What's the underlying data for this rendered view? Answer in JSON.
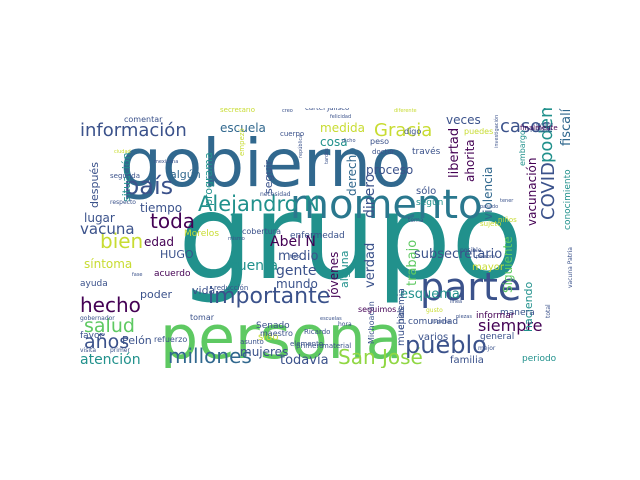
{
  "palette": {
    "purple": "#440154",
    "indigo": "#3b528b",
    "blue": "#31688e",
    "teal": "#21918c",
    "green": "#35b779",
    "lime": "#90d743",
    "yellow": "#c8dc32"
  },
  "words": [
    {
      "text": "grupo",
      "color": "#21918c"
    },
    {
      "text": "gobierno",
      "color": "#31688e"
    },
    {
      "text": "persona",
      "color": "#5ec962"
    },
    {
      "text": "momento",
      "color": "#2a788e"
    },
    {
      "text": "parte",
      "color": "#3b528b"
    },
    {
      "text": "Alejandro N",
      "color": "#21918c"
    },
    {
      "text": "Gracia",
      "color": "#c8dc32"
    },
    {
      "text": "San José",
      "color": "#90d743"
    },
    {
      "text": "información",
      "color": "#3b528b"
    },
    {
      "text": "país",
      "color": "#3b528b"
    },
    {
      "text": "importante",
      "color": "#3b528b"
    },
    {
      "text": "pueblo",
      "color": "#3b528b"
    },
    {
      "text": "salud",
      "color": "#5ec962"
    },
    {
      "text": "millones",
      "color": "#31688e"
    },
    {
      "text": "años",
      "color": "#3b528b"
    },
    {
      "text": "hecho",
      "color": "#440154"
    },
    {
      "text": "bien",
      "color": "#c8dc32"
    },
    {
      "text": "toda",
      "color": "#440154"
    },
    {
      "text": "casos",
      "color": "#3b528b"
    },
    {
      "text": "podemos",
      "color": "#21918c"
    },
    {
      "text": "COVID",
      "color": "#3b528b"
    },
    {
      "text": "siempre",
      "color": "#440154"
    },
    {
      "text": "vacuna",
      "color": "#3b528b"
    },
    {
      "text": "escuela",
      "color": "#31688e"
    },
    {
      "text": "medida",
      "color": "#c8dc32"
    },
    {
      "text": "fiscalía",
      "color": "#31688e"
    },
    {
      "text": "Abel N",
      "color": "#440154"
    },
    {
      "text": "atención",
      "color": "#21918c"
    },
    {
      "text": "todavía",
      "color": "#3b528b"
    },
    {
      "text": "mujeres",
      "color": "#3b528b"
    },
    {
      "text": "cuenta",
      "color": "#21918c"
    },
    {
      "text": "medio",
      "color": "#3b528b"
    },
    {
      "text": "gente",
      "color": "#3b528b"
    },
    {
      "text": "mundo",
      "color": "#3b528b"
    },
    {
      "text": "dinero",
      "color": "#3b528b"
    },
    {
      "text": "jóvenes",
      "color": "#440154"
    },
    {
      "text": "verdad",
      "color": "#3b528b"
    },
    {
      "text": "trabajo",
      "color": "#5ec962"
    },
    {
      "text": "esquema",
      "color": "#21918c"
    },
    {
      "text": "subsecretario",
      "color": "#3b528b"
    },
    {
      "text": "vacunación",
      "color": "#440154"
    },
    {
      "text": "violencia",
      "color": "#31688e"
    },
    {
      "text": "libertad",
      "color": "#440154"
    },
    {
      "text": "ahorita",
      "color": "#440154"
    },
    {
      "text": "proceso",
      "color": "#3b528b"
    },
    {
      "text": "derecho",
      "color": "#31688e"
    },
    {
      "text": "veces",
      "color": "#3b528b"
    },
    {
      "text": "cosa",
      "color": "#21918c"
    },
    {
      "text": "tiempo",
      "color": "#3b528b"
    },
    {
      "text": "lugar",
      "color": "#3b528b"
    },
    {
      "text": "edad",
      "color": "#440154"
    },
    {
      "text": "síntoma",
      "color": "#c8dc32"
    },
    {
      "text": "HUGO",
      "color": "#3b528b"
    },
    {
      "text": "poder",
      "color": "#3b528b"
    },
    {
      "text": "vida",
      "color": "#3b528b"
    },
    {
      "text": "después",
      "color": "#3b528b"
    },
    {
      "text": "situación",
      "color": "#21918c"
    },
    {
      "text": "programa",
      "color": "#21918c"
    },
    {
      "text": "algún",
      "color": "#31688e"
    },
    {
      "text": "seguir",
      "color": "#3b528b"
    },
    {
      "text": "alguna",
      "color": "#21918c"
    },
    {
      "text": "haciendo",
      "color": "#21918c"
    },
    {
      "text": "Siguiente",
      "color": "#5ec962"
    },
    {
      "text": "muchas",
      "color": "#3b528b"
    },
    {
      "text": "varios",
      "color": "#3b528b"
    },
    {
      "text": "familia",
      "color": "#3b528b"
    },
    {
      "text": "Pelón",
      "color": "#3b528b"
    },
    {
      "text": "favor",
      "color": "#3b528b"
    },
    {
      "text": "ayuda",
      "color": "#3b528b"
    },
    {
      "text": "acuerdo",
      "color": "#440154"
    },
    {
      "text": "tomar",
      "color": "#3b528b"
    },
    {
      "text": "Morelos",
      "color": "#c8dc32"
    },
    {
      "text": "enfermedad",
      "color": "#3b528b"
    },
    {
      "text": "cobertura",
      "color": "#3b528b"
    },
    {
      "text": "Senado",
      "color": "#3b528b"
    },
    {
      "text": "sido",
      "color": "#c8dc32"
    },
    {
      "text": "Michoacán",
      "color": "#3b528b"
    },
    {
      "text": "epidemia",
      "color": "#3b528b"
    },
    {
      "text": "seguimos",
      "color": "#440154"
    },
    {
      "text": "comunidad",
      "color": "#3b528b"
    },
    {
      "text": "mayor",
      "color": "#c8dc32"
    },
    {
      "text": "manera",
      "color": "#3b528b"
    },
    {
      "text": "informar",
      "color": "#440154"
    },
    {
      "text": "general",
      "color": "#3b528b"
    },
    {
      "text": "periodo",
      "color": "#21918c"
    },
    {
      "text": "conocimiento",
      "color": "#21918c"
    },
    {
      "text": "sólo",
      "color": "#3b528b"
    },
    {
      "text": "según",
      "color": "#21918c"
    },
    {
      "text": "través",
      "color": "#3b528b"
    },
    {
      "text": "puedes",
      "color": "#c8dc32"
    },
    {
      "text": "cártel Jalisco",
      "color": "#3b528b"
    },
    {
      "text": "digo",
      "color": "#3b528b"
    },
    {
      "text": "peso",
      "color": "#3b528b"
    },
    {
      "text": "doctor",
      "color": "#3b528b"
    },
    {
      "text": "secretario",
      "color": "#c8dc32"
    },
    {
      "text": "nadie",
      "color": "#3b528b"
    },
    {
      "text": "comentar",
      "color": "#3b528b"
    },
    {
      "text": "segunda",
      "color": "#3b528b"
    },
    {
      "text": "empezó",
      "color": "#c8dc32"
    },
    {
      "text": "finalmente",
      "color": "#440154"
    },
    {
      "text": "embargo",
      "color": "#21918c"
    },
    {
      "text": "maestro",
      "color": "#3b528b"
    },
    {
      "text": "material",
      "color": "#3b528b"
    },
    {
      "text": "primero",
      "color": "#3b528b"
    },
    {
      "text": "reducción",
      "color": "#3b528b"
    },
    {
      "text": "elemento",
      "color": "#3b528b"
    },
    {
      "text": "asunto",
      "color": "#3b528b"
    },
    {
      "text": "refuerzo",
      "color": "#3b528b"
    },
    {
      "text": "Ricardo",
      "color": "#3b528b"
    },
    {
      "text": "mejor",
      "color": "#3b528b"
    },
    {
      "text": "hora",
      "color": "#3b528b"
    },
    {
      "text": "niños",
      "color": "#c8dc32"
    },
    {
      "text": "posible",
      "color": "#3b528b"
    },
    {
      "text": "gobernador",
      "color": "#3b528b"
    },
    {
      "text": "visita",
      "color": "#3b528b"
    },
    {
      "text": "primer",
      "color": "#3b528b"
    },
    {
      "text": "respecto",
      "color": "#3b528b"
    },
    {
      "text": "cuerpo",
      "color": "#3b528b"
    },
    {
      "text": "necesidad",
      "color": "#3b528b"
    },
    {
      "text": "sujeto",
      "color": "#c8dc32"
    },
    {
      "text": "gusto",
      "color": "#c8dc32"
    },
    {
      "text": "tema",
      "color": "#3b528b"
    },
    {
      "text": "mexicana",
      "color": "#3b528b"
    },
    {
      "text": "ciudad",
      "color": "#c8dc32"
    },
    {
      "text": "evento",
      "color": "#3b528b"
    },
    {
      "text": "total",
      "color": "#3b528b"
    },
    {
      "text": "fase",
      "color": "#3b528b"
    },
    {
      "text": "tipo",
      "color": "#3b528b"
    },
    {
      "text": "línea",
      "color": "#3b528b"
    },
    {
      "text": "pasado",
      "color": "#3b528b"
    },
    {
      "text": "mismo",
      "color": "#3b528b"
    },
    {
      "text": "creo",
      "color": "#3b528b"
    },
    {
      "text": "dicho",
      "color": "#3b528b"
    },
    {
      "text": "lugares",
      "color": "#3b528b"
    },
    {
      "text": "tener",
      "color": "#3b528b"
    },
    {
      "text": "vacuna Patria",
      "color": "#3b528b"
    },
    {
      "text": "diferente",
      "color": "#c8dc32"
    },
    {
      "text": "investigación",
      "color": "#3b528b"
    },
    {
      "text": "república",
      "color": "#3b528b"
    },
    {
      "text": "escuelas",
      "color": "#3b528b"
    },
    {
      "text": "piezas",
      "color": "#3b528b"
    },
    {
      "text": "palabra",
      "color": "#3b528b"
    },
    {
      "text": "felicidad",
      "color": "#3b528b"
    },
    {
      "text": "tardes",
      "color": "#3b528b"
    }
  ]
}
